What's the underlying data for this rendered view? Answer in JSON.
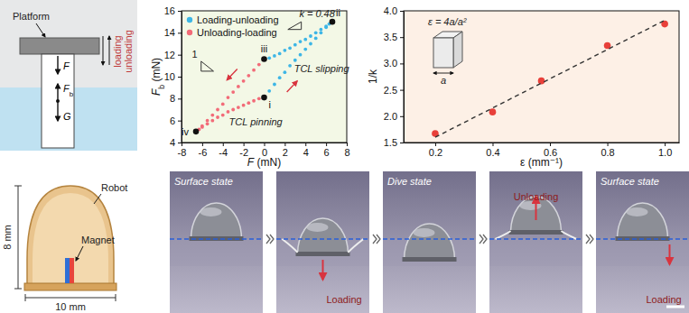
{
  "chart_data": [
    {
      "type": "scatter",
      "x_label": {
        "text": "F",
        "suffix": " (mN)"
      },
      "y_label": {
        "text": "F",
        "sub": "b",
        "suffix": " (mN)"
      },
      "xlim": [
        -8,
        8
      ],
      "xticks": [
        -8,
        -6,
        -4,
        -2,
        0,
        2,
        4,
        6,
        8
      ],
      "ylim": [
        4,
        16
      ],
      "yticks": [
        4,
        6,
        8,
        10,
        12,
        14,
        16
      ],
      "legend": "upper left",
      "series": [
        {
          "name": "Loading-unloading",
          "color": "#3db6e6",
          "marker": "circle",
          "x": [
            0,
            0.5,
            1,
            1.5,
            2,
            2.5,
            3,
            3.5,
            4,
            4.5,
            5,
            5.5,
            6,
            6.6,
            6.3,
            6,
            5.5,
            5,
            4.5,
            4,
            3.5,
            3,
            2.5,
            2,
            1.5,
            1,
            0.5,
            0
          ],
          "values": [
            8.1,
            8.7,
            9.3,
            9.9,
            10.4,
            11.0,
            11.5,
            12.0,
            12.5,
            13.0,
            13.5,
            14.0,
            14.5,
            15.0,
            14.8,
            14.6,
            14.3,
            14.0,
            13.7,
            13.4,
            13.2,
            12.9,
            12.6,
            12.4,
            12.1,
            11.9,
            11.7,
            11.6
          ]
        },
        {
          "name": "Unloading-loading",
          "color": "#f26b78",
          "marker": "circle",
          "x": [
            -0.5,
            -1,
            -1.5,
            -2,
            -2.5,
            -3,
            -3.5,
            -4,
            -4.5,
            -5,
            -5.5,
            -6,
            -6.6,
            -6.3,
            -6,
            -5.5,
            -5,
            -4.5,
            -4,
            -3.5,
            -3,
            -2.5,
            -2,
            -1.5,
            -1,
            -0.5
          ],
          "values": [
            11.1,
            10.6,
            10.1,
            9.6,
            9.1,
            8.6,
            8.1,
            7.5,
            7.0,
            6.5,
            6.0,
            5.5,
            5.0,
            5.2,
            5.4,
            5.7,
            6.0,
            6.3,
            6.5,
            6.8,
            7.0,
            7.2,
            7.4,
            7.6,
            7.8,
            8.0
          ]
        }
      ],
      "points": [
        {
          "label": "i",
          "x": 0,
          "y": 8.1
        },
        {
          "label": "ii",
          "x": 6.6,
          "y": 15.0
        },
        {
          "label": "iii",
          "x": 0,
          "y": 11.6
        },
        {
          "label": "iv",
          "x": -6.6,
          "y": 5.0
        }
      ],
      "annotations": [
        "k = 0.48",
        "1",
        "TCL slipping",
        "TCL pinning"
      ]
    },
    {
      "type": "scatter",
      "x_label": {
        "text": "ε (mm⁻¹)"
      },
      "y_label": {
        "text": "1/k"
      },
      "xlim": [
        0.09,
        1.05
      ],
      "xticks": [
        0.2,
        0.4,
        0.6,
        0.8,
        {
          "value": 1,
          "label": "1.0"
        }
      ],
      "ylim": [
        1.5,
        4
      ],
      "yticks": [
        1.5,
        {
          "value": 2,
          "label": "2.0"
        },
        2.5,
        {
          "value": 3,
          "label": "3.0"
        },
        3.5,
        {
          "value": 4,
          "label": "4.0"
        }
      ],
      "series": [
        {
          "color": "#e8403a",
          "marker": "circle",
          "x": [
            0.2,
            0.4,
            0.57,
            0.8,
            1.0
          ],
          "values": [
            1.67,
            2.08,
            2.67,
            3.34,
            3.75
          ]
        },
        {
          "type": "line",
          "line_style": "dashed",
          "color": "#333333",
          "x": [
            0.2,
            1.0
          ],
          "values": [
            1.6,
            3.82
          ]
        }
      ],
      "annotations": [
        "ε = 4a/a²",
        "a"
      ]
    }
  ],
  "schematic": {
    "platform": "Platform",
    "force_top": "F",
    "force_buoy": {
      "text": "F",
      "sub": "b"
    },
    "weight": "G",
    "loading": "loading",
    "unloading": "unloading"
  },
  "robot": {
    "robot": "Robot",
    "magnet": "Magnet",
    "height": "8 mm",
    "width": "10 mm"
  },
  "sequence": [
    {
      "state": "Surface state"
    },
    {
      "action": "Loading"
    },
    {
      "state": "Dive state"
    },
    {
      "action": "Unloading"
    },
    {
      "state": "Surface state",
      "action": "Loading"
    }
  ]
}
